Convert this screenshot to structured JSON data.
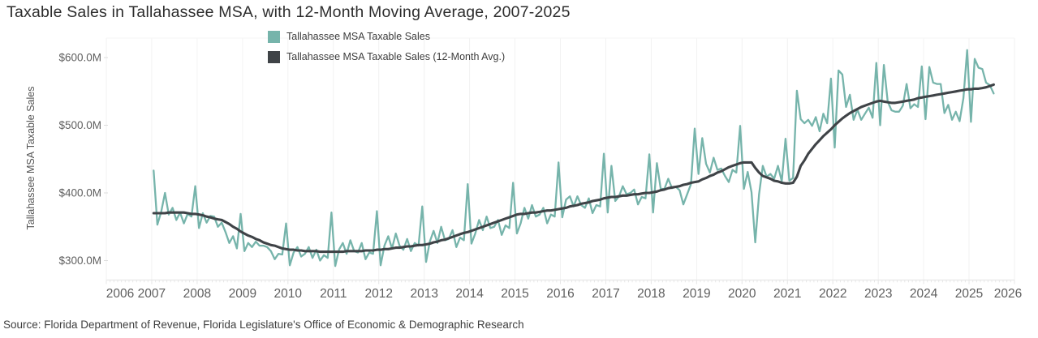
{
  "chart": {
    "title": "Taxable Sales in Tallahassee MSA, with 12-Month Moving Average, 2007-2025",
    "y_axis_title": "Tallahassee MSA Taxable Sales",
    "source": "Source: Florida Department of Revenue, Florida Legislature's Office of Economic & Demographic Research",
    "legend": [
      {
        "label": "Tallahassee MSA Taxable Sales"
      },
      {
        "label": "Tallahassee MSA Taxable Sales (12-Month Avg.)"
      }
    ],
    "style": {
      "accent_teal": "#76b4ab",
      "accent_dark": "#3f4347",
      "grid": "#f2f2f2",
      "axis": "#e7e7e7",
      "tick_stub": "#dddddd",
      "text": "#5f5f5f"
    }
  },
  "chart_data": {
    "type": "line",
    "title": "Taxable Sales in Tallahassee MSA, with 12-Month Moving Average, 2007-2025",
    "xlabel": "",
    "ylabel": "Tallahassee MSA Taxable Sales",
    "x_frequency": "monthly",
    "x_start": "2007-01",
    "x_end": "2025-07",
    "legend_position": "top-center",
    "grid": "vertical-years-only",
    "x_axis": {
      "range_years": [
        2006,
        2026
      ],
      "tick_years": [
        2006,
        2007,
        2008,
        2009,
        2010,
        2011,
        2012,
        2013,
        2014,
        2015,
        2016,
        2017,
        2018,
        2019,
        2020,
        2021,
        2022,
        2023,
        2024,
        2025,
        2026
      ]
    },
    "y_axis": {
      "unit": "USD millions",
      "ticks": [
        {
          "label": "$600.0M",
          "value": 600
        },
        {
          "label": "$500.0M",
          "value": 500
        },
        {
          "label": "$400.0M",
          "value": 400
        },
        {
          "label": "$300.0M",
          "value": 300
        }
      ]
    },
    "series": [
      {
        "name": "Tallahassee MSA Taxable Sales",
        "color": "#76b4ab",
        "unit": "$M",
        "values": [
          433,
          353,
          372,
          400,
          368,
          378,
          360,
          371,
          355,
          369,
          365,
          410,
          348,
          370,
          356,
          366,
          365,
          350,
          356,
          342,
          326,
          336,
          318,
          369,
          314,
          326,
          320,
          328,
          322,
          322,
          320,
          314,
          302,
          310,
          309,
          355,
          293,
          312,
          320,
          306,
          310,
          320,
          304,
          316,
          300,
          308,
          304,
          371,
          292,
          316,
          326,
          310,
          330,
          314,
          312,
          326,
          302,
          312,
          310,
          373,
          293,
          322,
          336,
          318,
          340,
          322,
          316,
          332,
          314,
          326,
          322,
          380,
          298,
          328,
          344,
          326,
          350,
          330,
          332,
          345,
          320,
          334,
          330,
          413,
          325,
          340,
          360,
          345,
          365,
          348,
          350,
          360,
          338,
          352,
          348,
          415,
          340,
          355,
          378,
          362,
          382,
          365,
          368,
          378,
          355,
          368,
          365,
          445,
          364,
          390,
          395,
          380,
          395,
          382,
          378,
          392,
          370,
          382,
          380,
          458,
          371,
          440,
          388,
          395,
          410,
          398,
          400,
          405,
          383,
          394,
          392,
          457,
          371,
          444,
          406,
          406,
          421,
          407,
          409,
          404,
          383,
          398,
          413,
          495,
          428,
          481,
          443,
          430,
          452,
          434,
          436,
          425,
          416,
          434,
          430,
          499,
          406,
          431,
          401,
          327,
          398,
          440,
          424,
          428,
          421,
          440,
          417,
          480,
          418,
          422,
          551,
          509,
          503,
          508,
          499,
          512,
          491,
          517,
          503,
          569,
          467,
          581,
          575,
          527,
          545,
          508,
          523,
          508,
          517,
          526,
          511,
          592,
          500,
          589,
          535,
          522,
          520,
          520,
          529,
          561,
          525,
          531,
          527,
          587,
          509,
          586,
          563,
          561,
          561,
          518,
          530,
          508,
          520,
          506,
          540,
          611,
          505,
          598,
          585,
          583,
          563,
          559,
          547
        ]
      },
      {
        "name": "Tallahassee MSA Taxable Sales (12-Month Avg.)",
        "color": "#3f4347",
        "unit": "$M",
        "values": [
          370,
          370,
          370,
          370,
          371,
          371,
          371,
          371,
          371,
          370,
          369,
          369,
          368,
          367,
          365,
          364,
          362,
          361,
          360,
          357,
          354,
          350,
          347,
          343,
          340,
          337,
          335,
          332,
          330,
          327,
          325,
          323,
          322,
          320,
          318,
          317,
          316,
          316,
          315,
          315,
          314,
          314,
          314,
          314,
          313,
          313,
          313,
          313,
          313,
          313,
          313,
          314,
          314,
          314,
          314,
          314,
          315,
          315,
          315,
          316,
          316,
          317,
          317,
          318,
          319,
          319,
          320,
          321,
          321,
          322,
          323,
          323,
          324,
          325,
          327,
          328,
          330,
          331,
          333,
          335,
          337,
          339,
          341,
          342,
          344,
          346,
          348,
          350,
          352,
          354,
          356,
          358,
          360,
          362,
          364,
          366,
          368,
          369,
          369,
          370,
          371,
          371,
          372,
          373,
          374,
          374,
          375,
          376,
          377,
          378,
          380,
          381,
          382,
          384,
          385,
          386,
          388,
          389,
          390,
          392,
          393,
          394,
          394,
          395,
          396,
          396,
          397,
          398,
          398,
          399,
          400,
          400,
          401,
          402,
          404,
          405,
          407,
          408,
          409,
          410,
          412,
          413,
          415,
          416,
          417,
          420,
          422,
          425,
          427,
          430,
          432,
          435,
          438,
          440,
          442,
          444,
          445,
          445,
          445,
          437,
          430,
          425,
          423,
          421,
          418,
          417,
          415,
          414,
          414,
          415,
          424,
          440,
          448,
          458,
          465,
          472,
          478,
          484,
          489,
          494,
          500,
          505,
          510,
          514,
          518,
          521,
          524,
          527,
          529,
          531,
          533,
          535,
          536,
          535,
          534,
          533,
          533,
          534,
          535,
          536,
          537,
          538,
          540,
          541,
          542,
          543,
          544,
          545,
          546,
          547,
          548,
          549,
          550,
          551,
          552,
          553,
          553,
          554,
          554,
          555,
          556,
          558,
          560
        ]
      }
    ]
  }
}
